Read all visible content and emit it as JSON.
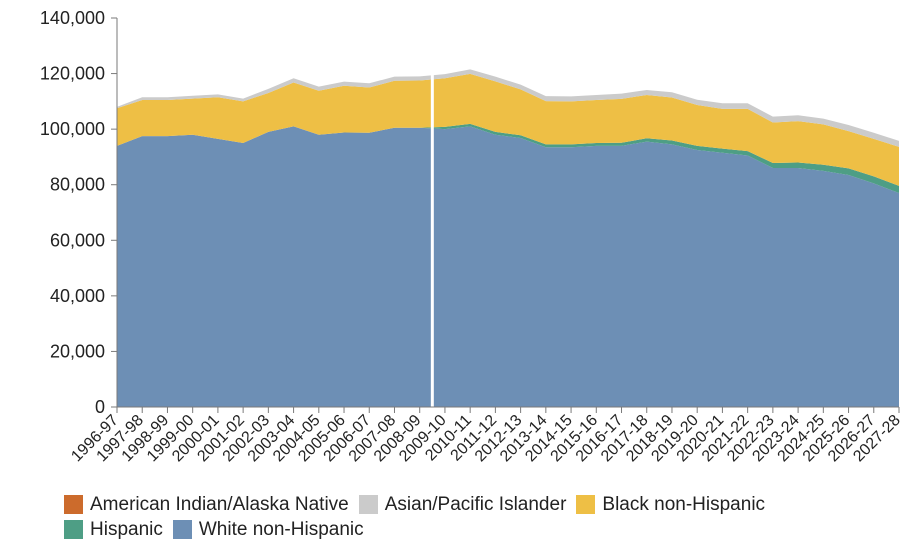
{
  "chart_data": {
    "type": "area",
    "stacked": true,
    "categories": [
      "1996-97",
      "1997-98",
      "1998-99",
      "1999-00",
      "2000-01",
      "2001-02",
      "2002-03",
      "2003-04",
      "2004-05",
      "2005-06",
      "2006-07",
      "2007-08",
      "2008-09",
      "2009-10",
      "2010-11",
      "2011-12",
      "2012-13",
      "2013-14",
      "2014-15",
      "2015-16",
      "2016-17",
      "2017-18",
      "2018-19",
      "2019-20",
      "2020-21",
      "2021-22",
      "2022-23",
      "2023-24",
      "2024-25",
      "2025-26",
      "2026-27",
      "2027-28"
    ],
    "ylim": [
      0,
      140000
    ],
    "yticks": [
      0,
      20000,
      40000,
      60000,
      80000,
      100000,
      120000,
      140000
    ],
    "ytick_labels": [
      "0",
      "20,000",
      "40,000",
      "60,000",
      "80,000",
      "100,000",
      "120,000",
      "140,000"
    ],
    "divider_after": "2008-09",
    "grid": false,
    "legend_position": "bottom",
    "series": [
      {
        "name": "White non-Hispanic",
        "color": "#6d8fb5",
        "values": [
          94000,
          97500,
          97500,
          98000,
          96500,
          95000,
          99000,
          101000,
          98000,
          98800,
          98700,
          100500,
          100500,
          100000,
          101000,
          98000,
          96800,
          93500,
          93500,
          94000,
          94000,
          95500,
          94500,
          92500,
          91500,
          90500,
          86000,
          86000,
          85000,
          83500,
          80500,
          77000
        ]
      },
      {
        "name": "Hispanic",
        "color": "#4e9e85",
        "values": [
          0,
          0,
          0,
          0,
          0,
          0,
          0,
          0,
          0,
          0,
          0,
          0,
          0,
          800,
          900,
          1000,
          1000,
          1000,
          1000,
          1000,
          1100,
          1200,
          1400,
          1500,
          1500,
          1600,
          1800,
          2000,
          2200,
          2400,
          2500,
          2600
        ]
      },
      {
        "name": "Black non-Hispanic",
        "color": "#eebf45",
        "values": [
          13500,
          13000,
          13000,
          13000,
          15000,
          15000,
          14000,
          15800,
          15800,
          16800,
          16300,
          16900,
          17000,
          17500,
          18000,
          18200,
          16500,
          15600,
          15500,
          15500,
          15800,
          15600,
          15500,
          14700,
          14300,
          15200,
          14600,
          14900,
          14500,
          13400,
          13500,
          14000
        ]
      },
      {
        "name": "Asian/Pacific Islander",
        "color": "#cbcbcb",
        "values": [
          500,
          1000,
          1000,
          1000,
          1000,
          1000,
          1500,
          1500,
          1500,
          1500,
          1500,
          1500,
          1500,
          1500,
          1600,
          1700,
          1700,
          1800,
          1800,
          1800,
          1900,
          1800,
          1900,
          1900,
          2000,
          2000,
          2100,
          2100,
          2100,
          2200,
          2200,
          2200
        ]
      },
      {
        "name": "American Indian/Alaska Native",
        "color": "#cc6b2c",
        "values": [
          0,
          0,
          0,
          0,
          0,
          0,
          0,
          0,
          0,
          0,
          0,
          0,
          0,
          0,
          0,
          0,
          0,
          0,
          0,
          0,
          0,
          0,
          0,
          0,
          0,
          0,
          0,
          0,
          0,
          0,
          0,
          0
        ]
      }
    ]
  },
  "legend": {
    "row1": [
      {
        "label": "American Indian/Alaska Native",
        "color": "#cc6b2c"
      },
      {
        "label": "Asian/Pacific Islander",
        "color": "#cbcbcb"
      },
      {
        "label": "Black non-Hispanic",
        "color": "#eebf45"
      }
    ],
    "row2": [
      {
        "label": "Hispanic",
        "color": "#4e9e85"
      },
      {
        "label": "White non-Hispanic",
        "color": "#6d8fb5"
      }
    ]
  }
}
